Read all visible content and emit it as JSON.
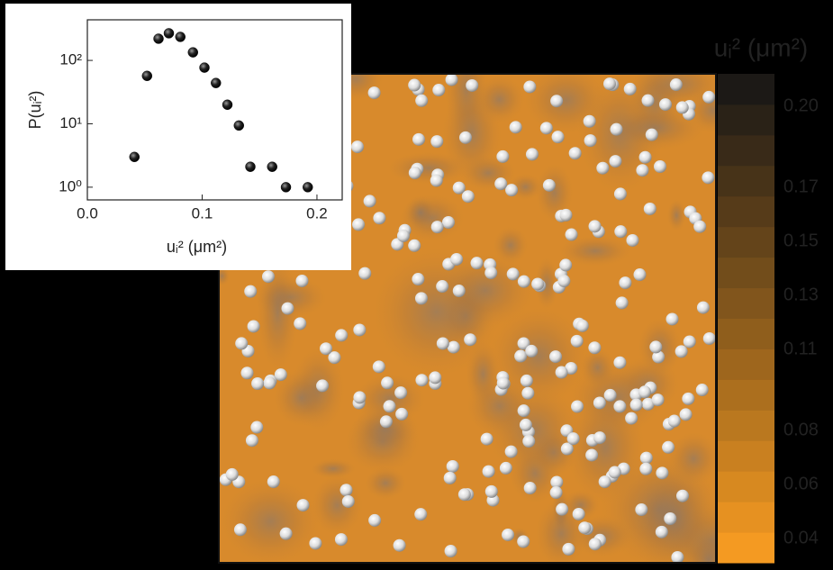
{
  "chart_data": [
    {
      "type": "scatter",
      "y_label": "P(uᵢ²)",
      "x_label": "uᵢ² (μm²)",
      "x": [
        0.041,
        0.052,
        0.062,
        0.071,
        0.081,
        0.092,
        0.102,
        0.112,
        0.122,
        0.132,
        0.142,
        0.161,
        0.173,
        0.192
      ],
      "y": [
        3,
        57,
        220,
        268,
        235,
        134,
        77,
        44,
        20,
        9.4,
        2.1,
        2.1,
        1,
        1
      ],
      "color": "#111111",
      "xlim": [
        0,
        0.222
      ],
      "xticks": [
        {
          "value": 0,
          "label": "0.0"
        },
        {
          "value": 0.1,
          "label": "0.1"
        },
        {
          "value": 0.2,
          "label": "0.2"
        }
      ],
      "ylim": [
        0.63,
        437
      ],
      "log_y": true,
      "yticks": [
        {
          "value": 1,
          "label": "10⁰"
        },
        {
          "value": 10,
          "label": "10¹"
        },
        {
          "value": 100,
          "label": "10²"
        }
      ]
    },
    {
      "type": "colorbar",
      "title": "uᵢ² (μm²)",
      "colors": [
        "#f49a22",
        "#1c1916"
      ],
      "bands": 16,
      "clim": [
        0.031,
        0.212
      ],
      "ticks": [
        {
          "value": 0.04,
          "label": "0.04"
        },
        {
          "value": 0.06,
          "label": "0.06"
        },
        {
          "value": 0.08,
          "label": "0.08"
        },
        {
          "value": 0.11,
          "label": "0.11"
        },
        {
          "value": 0.13,
          "label": "0.13"
        },
        {
          "value": 0.15,
          "label": "0.15"
        },
        {
          "value": 0.17,
          "label": "0.17"
        },
        {
          "value": 0.2,
          "label": "0.20"
        }
      ]
    }
  ]
}
